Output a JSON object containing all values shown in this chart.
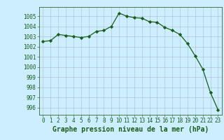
{
  "x": [
    0,
    1,
    2,
    3,
    4,
    5,
    6,
    7,
    8,
    9,
    10,
    11,
    12,
    13,
    14,
    15,
    16,
    17,
    18,
    19,
    20,
    21,
    22,
    23
  ],
  "y": [
    1002.5,
    1002.6,
    1003.2,
    1003.1,
    1003.0,
    1002.9,
    1003.0,
    1003.5,
    1003.6,
    1004.0,
    1005.3,
    1005.0,
    1004.85,
    1004.8,
    1004.45,
    1004.4,
    1003.9,
    1003.6,
    1003.2,
    1002.3,
    1001.1,
    999.8,
    997.5,
    995.8
  ],
  "line_color": "#1a5c1a",
  "marker": "D",
  "marker_size": 2.2,
  "bg_color": "#cceeff",
  "grid_color": "#aabbcc",
  "xlabel": "Graphe pression niveau de la mer (hPa)",
  "xlabel_fontsize": 7,
  "xlabel_color": "#1a5c1a",
  "ytick_labels": [
    996,
    997,
    998,
    999,
    1000,
    1001,
    1002,
    1003,
    1004,
    1005
  ],
  "ylim": [
    995.3,
    1005.9
  ],
  "xlim": [
    -0.5,
    23.5
  ],
  "xtick_labels": [
    "0",
    "1",
    "2",
    "3",
    "4",
    "5",
    "6",
    "7",
    "8",
    "9",
    "10",
    "11",
    "12",
    "13",
    "14",
    "15",
    "16",
    "17",
    "18",
    "19",
    "20",
    "21",
    "22",
    "23"
  ],
  "tick_color": "#1a5c1a",
  "tick_fontsize": 5.5,
  "spine_color": "#336633"
}
